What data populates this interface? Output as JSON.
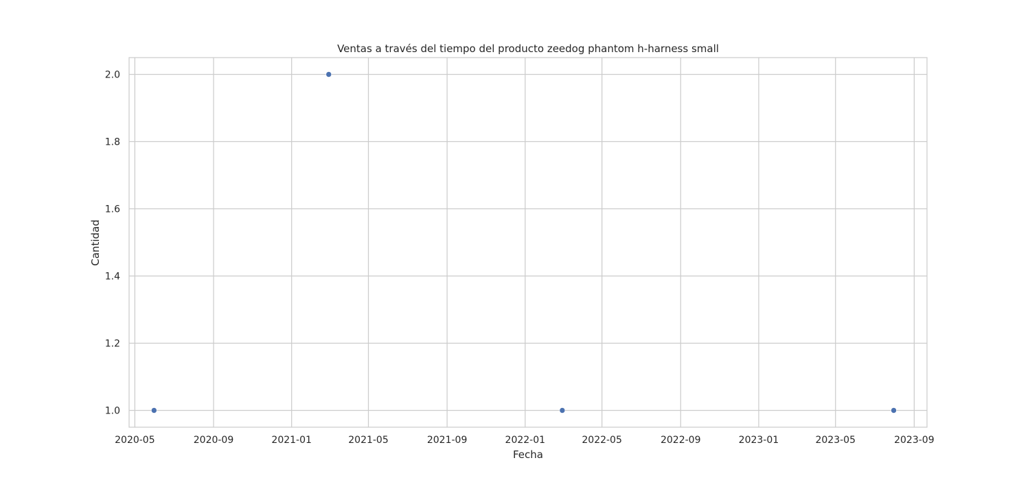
{
  "chart_data": {
    "type": "scatter",
    "title": "Ventas a través del tiempo del producto zeedog phantom h-harness small",
    "xlabel": "Fecha",
    "ylabel": "Cantidad",
    "x_axis_type": "date",
    "xlim": [
      "2020-04-22",
      "2023-09-21"
    ],
    "ylim": [
      0.95,
      2.05
    ],
    "x_ticks": [
      "2020-05-01",
      "2020-09-01",
      "2021-01-01",
      "2021-05-01",
      "2021-09-01",
      "2022-01-01",
      "2022-05-01",
      "2022-09-01",
      "2023-01-01",
      "2023-05-01",
      "2023-09-01"
    ],
    "x_tick_labels": [
      "2020-05",
      "2020-09",
      "2021-01",
      "2021-05",
      "2021-09",
      "2022-01",
      "2022-05",
      "2022-09",
      "2023-01",
      "2023-05",
      "2023-09"
    ],
    "y_ticks": [
      1.0,
      1.2,
      1.4,
      1.6,
      1.8,
      2.0
    ],
    "y_tick_labels": [
      "1.0",
      "1.2",
      "1.4",
      "1.6",
      "1.8",
      "2.0"
    ],
    "grid": true,
    "legend": "none",
    "marker_color": "#4c72b0",
    "grid_color": "#cccccc",
    "points": [
      {
        "x": "2020-05-31",
        "y": 1
      },
      {
        "x": "2021-02-28",
        "y": 2
      },
      {
        "x": "2022-02-28",
        "y": 1
      },
      {
        "x": "2023-07-31",
        "y": 1
      }
    ]
  }
}
